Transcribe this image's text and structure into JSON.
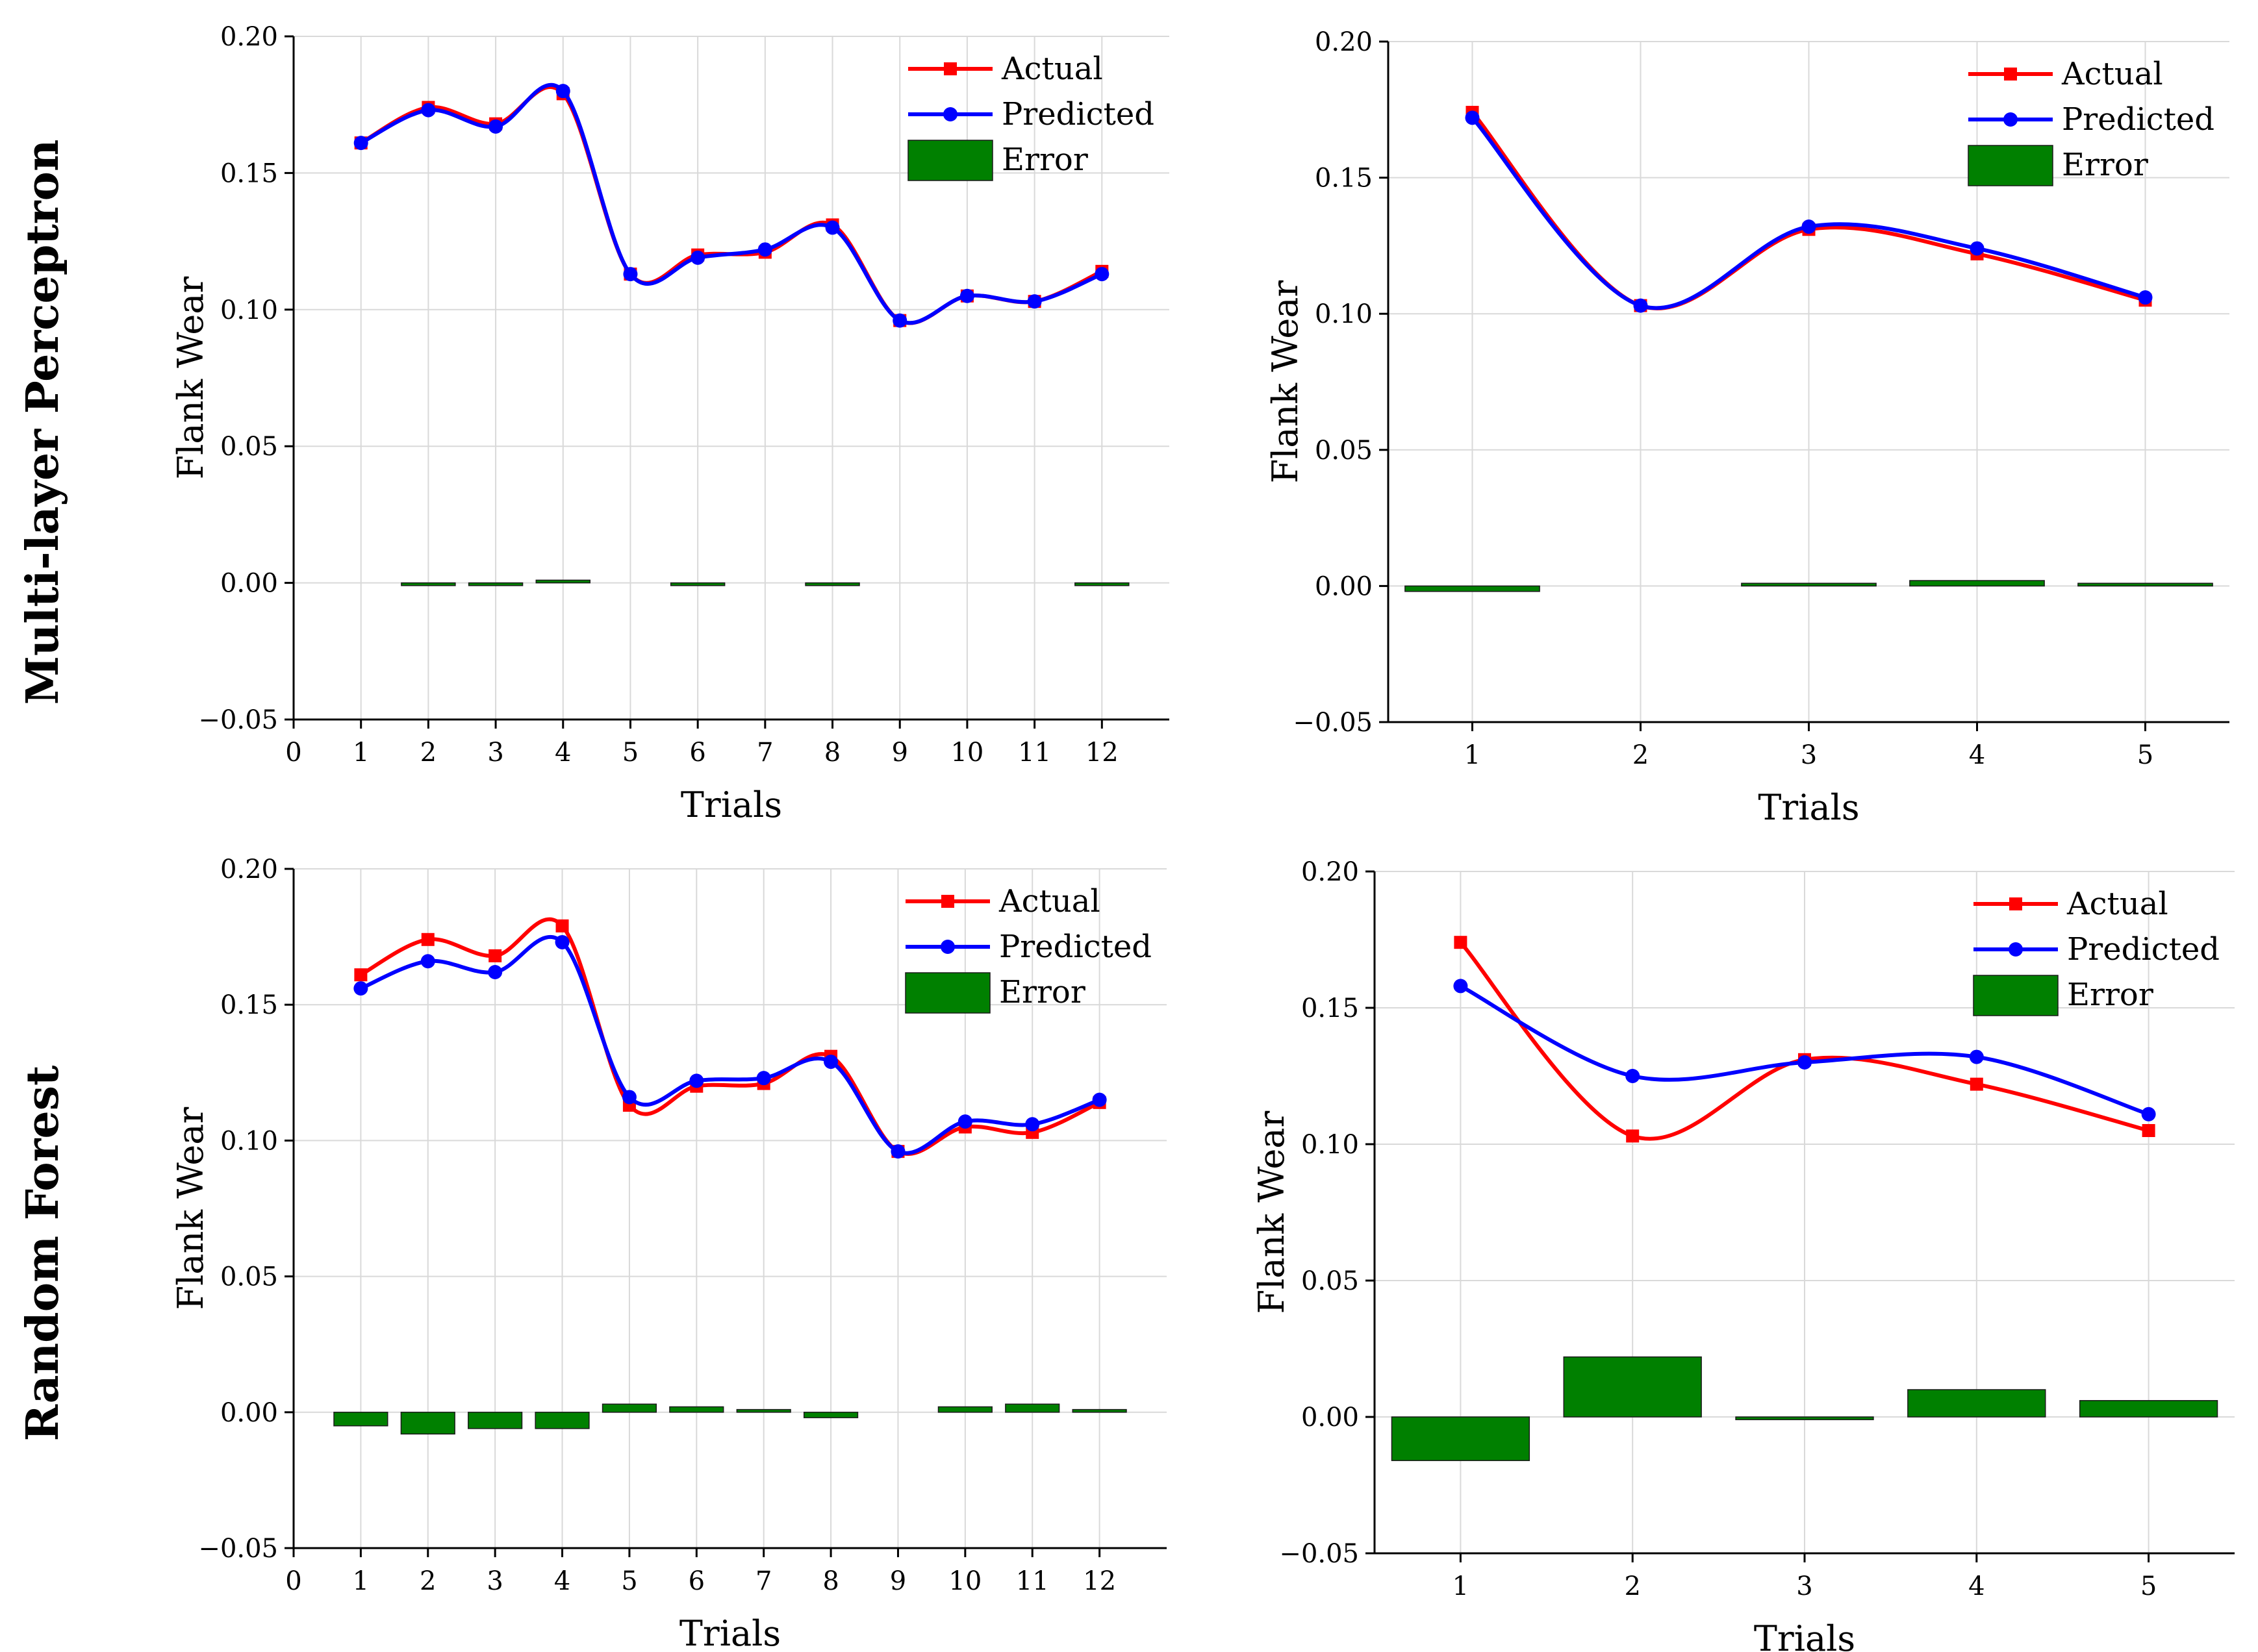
{
  "row_labels": [
    "Multi-layer Perceptron",
    "Random Forest"
  ],
  "colors": {
    "actual": "#ff0000",
    "predicted": "#0000ff",
    "error": "#008000",
    "grid": "#d9d9d9"
  },
  "chart_data": [
    {
      "type": "line",
      "xlabel": "Trials",
      "ylabel": "Flank Wear",
      "ylim": [
        -0.05,
        0.2
      ],
      "yticks": [
        "0.20",
        "0.15",
        "0.10",
        "0.05",
        "0.00",
        "−0.05"
      ],
      "xlim": [
        0,
        13
      ],
      "xticks": [
        "0",
        "1",
        "2",
        "3",
        "4",
        "5",
        "6",
        "7",
        "8",
        "9",
        "10",
        "11",
        "12"
      ],
      "grid": true,
      "legend": "top-right",
      "x": [
        1,
        2,
        3,
        4,
        5,
        6,
        7,
        8,
        9,
        10,
        11,
        12
      ],
      "series": [
        {
          "name": "Actual",
          "values": [
            0.161,
            0.174,
            0.168,
            0.179,
            0.113,
            0.12,
            0.121,
            0.131,
            0.096,
            0.105,
            0.103,
            0.114
          ]
        },
        {
          "name": "Predicted",
          "values": [
            0.161,
            0.173,
            0.167,
            0.18,
            0.113,
            0.119,
            0.122,
            0.13,
            0.096,
            0.105,
            0.103,
            0.113
          ]
        },
        {
          "name": "Error",
          "values": [
            0.0,
            -0.001,
            -0.001,
            0.001,
            0.0,
            -0.001,
            0.0,
            -0.001,
            0.0,
            0.0,
            0.0,
            -0.001
          ]
        }
      ]
    },
    {
      "type": "line",
      "xlabel": "Trials",
      "ylabel": "Flank Wear",
      "ylim": [
        -0.05,
        0.2
      ],
      "yticks": [
        "0.20",
        "0.15",
        "0.10",
        "0.05",
        "0.00",
        "−0.05"
      ],
      "xlim": [
        0.5,
        5.5
      ],
      "xticks": [
        "1",
        "2",
        "3",
        "4",
        "5"
      ],
      "grid": true,
      "legend": "top-right",
      "x": [
        1,
        2,
        3,
        4,
        5
      ],
      "series": [
        {
          "name": "Actual",
          "values": [
            0.174,
            0.103,
            0.131,
            0.122,
            0.105
          ]
        },
        {
          "name": "Predicted",
          "values": [
            0.172,
            0.103,
            0.132,
            0.124,
            0.106
          ]
        },
        {
          "name": "Error",
          "values": [
            -0.002,
            0.0,
            0.001,
            0.002,
            0.001
          ]
        }
      ]
    },
    {
      "type": "line",
      "xlabel": "Trials",
      "ylabel": "Flank Wear",
      "ylim": [
        -0.05,
        0.2
      ],
      "yticks": [
        "0.20",
        "0.15",
        "0.10",
        "0.05",
        "0.00",
        "−0.05"
      ],
      "xlim": [
        0,
        13
      ],
      "xticks": [
        "0",
        "1",
        "2",
        "3",
        "4",
        "5",
        "6",
        "7",
        "8",
        "9",
        "10",
        "11",
        "12"
      ],
      "grid": true,
      "legend": "top-right",
      "x": [
        1,
        2,
        3,
        4,
        5,
        6,
        7,
        8,
        9,
        10,
        11,
        12
      ],
      "series": [
        {
          "name": "Actual",
          "values": [
            0.161,
            0.174,
            0.168,
            0.179,
            0.113,
            0.12,
            0.121,
            0.131,
            0.096,
            0.105,
            0.103,
            0.114
          ]
        },
        {
          "name": "Predicted",
          "values": [
            0.156,
            0.166,
            0.162,
            0.173,
            0.116,
            0.122,
            0.123,
            0.129,
            0.096,
            0.107,
            0.106,
            0.115
          ]
        },
        {
          "name": "Error",
          "values": [
            -0.005,
            -0.008,
            -0.006,
            -0.006,
            0.003,
            0.002,
            0.001,
            -0.002,
            0.0,
            0.002,
            0.003,
            0.001
          ]
        }
      ]
    },
    {
      "type": "line",
      "xlabel": "Trials",
      "ylabel": "Flank Wear",
      "ylim": [
        -0.05,
        0.2
      ],
      "yticks": [
        "0.20",
        "0.15",
        "0.10",
        "0.05",
        "0.00",
        "−0.05"
      ],
      "xlim": [
        0.5,
        5.5
      ],
      "xticks": [
        "1",
        "2",
        "3",
        "4",
        "5"
      ],
      "grid": true,
      "legend": "top-right",
      "x": [
        1,
        2,
        3,
        4,
        5
      ],
      "series": [
        {
          "name": "Actual",
          "values": [
            0.174,
            0.103,
            0.131,
            0.122,
            0.105
          ]
        },
        {
          "name": "Predicted",
          "values": [
            0.158,
            0.125,
            0.13,
            0.132,
            0.111
          ]
        },
        {
          "name": "Error",
          "values": [
            -0.016,
            0.022,
            -0.001,
            0.01,
            0.006
          ]
        }
      ]
    }
  ]
}
